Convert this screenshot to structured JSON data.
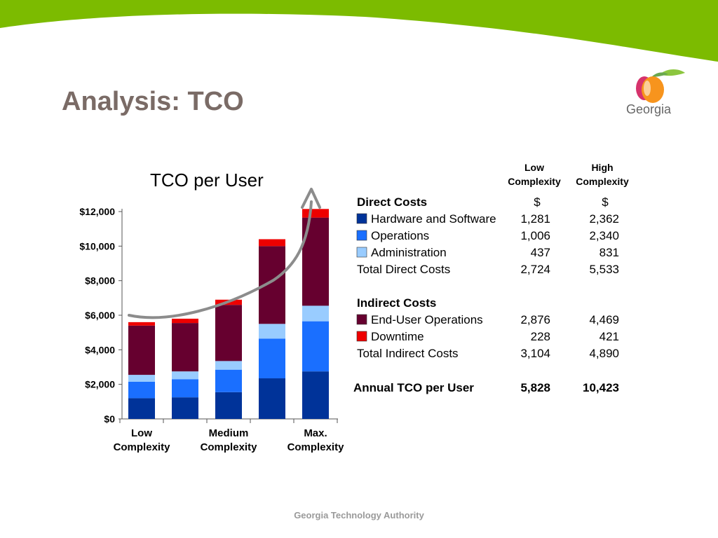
{
  "slide": {
    "title": "Analysis: TCO",
    "footer": "Georgia Technology Authority",
    "logo_text": "Georgia",
    "colors": {
      "band": "#7cbb00",
      "title": "#7a6b66"
    }
  },
  "chart_data": {
    "type": "bar",
    "stacked": true,
    "title": "TCO per User",
    "ylim": [
      0,
      12000
    ],
    "yticks": [
      "$0",
      "$2,000",
      "$4,000",
      "$6,000",
      "$8,000",
      "$10,000",
      "$12,000"
    ],
    "ytick_values": [
      0,
      2000,
      4000,
      6000,
      8000,
      10000,
      12000
    ],
    "categories": [
      "",
      "",
      "",
      "",
      ""
    ],
    "category_labels": [
      {
        "line1": "Low",
        "line2": "Complexity",
        "at": 0
      },
      {
        "line1": "Medium",
        "line2": "Complexity",
        "at": 2
      },
      {
        "line1": "Max.",
        "line2": "Complexity",
        "at": 4
      }
    ],
    "series": [
      {
        "name": "Hardware and Software",
        "color": "#003399",
        "values": [
          1200,
          1250,
          1550,
          2350,
          2750
        ]
      },
      {
        "name": "Operations",
        "color": "#1a6fff",
        "values": [
          950,
          1050,
          1300,
          2300,
          2900
        ]
      },
      {
        "name": "Administration",
        "color": "#99ccff",
        "values": [
          400,
          450,
          500,
          850,
          900
        ]
      },
      {
        "name": "End-User Operations",
        "color": "#66002f",
        "values": [
          2850,
          2800,
          3250,
          4500,
          5100
        ]
      },
      {
        "name": "Downtime",
        "color": "#ee0000",
        "values": [
          200,
          250,
          300,
          400,
          500
        ]
      }
    ],
    "trend_arrow": {
      "color": "#8c8c8c"
    }
  },
  "table": {
    "col_headers": [
      {
        "line1": "Low",
        "line2": "Complexity"
      },
      {
        "line1": "High",
        "line2": "Complexity"
      }
    ],
    "sections": [
      {
        "heading": "Direct Costs",
        "heading_values": [
          "$",
          "$"
        ],
        "rows": [
          {
            "label": "Hardware and Software",
            "color": "#003399",
            "low": "1,281",
            "high": "2,362"
          },
          {
            "label": "Operations",
            "color": "#1a6fff",
            "low": "1,006",
            "high": "2,340"
          },
          {
            "label": "Administration",
            "color": "#99ccff",
            "low": "437",
            "high": "831"
          }
        ],
        "total": {
          "label": "Total Direct Costs",
          "low": "2,724",
          "high": "5,533"
        }
      },
      {
        "heading": "Indirect Costs",
        "heading_values": [
          "",
          ""
        ],
        "rows": [
          {
            "label": "End-User Operations",
            "color": "#66002f",
            "low": "2,876",
            "high": "4,469"
          },
          {
            "label": "Downtime",
            "color": "#ee0000",
            "low": "228",
            "high": "421"
          }
        ],
        "total": {
          "label": "Total Indirect Costs",
          "low": "3,104",
          "high": "4,890"
        }
      }
    ],
    "annual": {
      "label": "Annual TCO per User",
      "low": "5,828",
      "high": "10,423"
    }
  }
}
